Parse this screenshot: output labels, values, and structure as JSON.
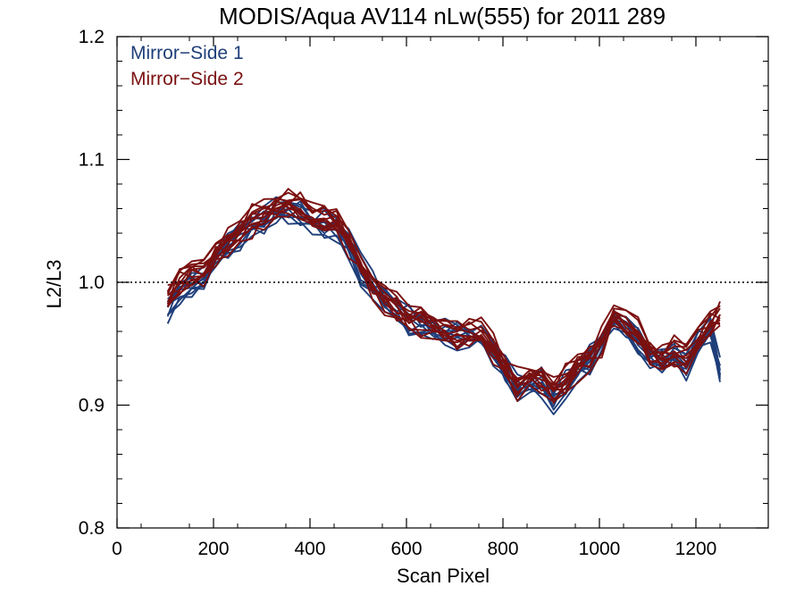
{
  "chart_data": {
    "type": "line",
    "title": "MODIS/Aqua AV114 nLw(555) for 2011 289",
    "xlabel": "Scan Pixel",
    "ylabel": "L2/L3",
    "xlim": [
      0,
      1350
    ],
    "ylim": [
      0.8,
      1.2
    ],
    "x_ticks": [
      0,
      200,
      400,
      600,
      800,
      1000,
      1200
    ],
    "y_ticks": [
      0.8,
      0.9,
      1.0,
      1.1,
      1.2
    ],
    "x_tick_labels": [
      "0",
      "200",
      "400",
      "600",
      "800",
      "1000",
      "1200"
    ],
    "y_tick_labels": [
      "0.8",
      "0.9",
      "1.0",
      "1.1",
      "1.2"
    ],
    "reference_line": 1.0,
    "legend": [
      "Mirror−Side 1",
      "Mirror−Side 2"
    ],
    "legend_placement": "top-left",
    "colors": {
      "Mirror-Side 1": "#1f3f7a",
      "Mirror-Side 2": "#7a1010"
    },
    "x": [
      105,
      130,
      155,
      180,
      205,
      230,
      255,
      280,
      305,
      330,
      355,
      380,
      405,
      430,
      455,
      480,
      505,
      530,
      555,
      580,
      605,
      630,
      655,
      680,
      705,
      730,
      755,
      780,
      805,
      830,
      855,
      880,
      905,
      930,
      955,
      980,
      1005,
      1030,
      1055,
      1080,
      1105,
      1130,
      1155,
      1180,
      1205,
      1230,
      1250
    ],
    "series": [
      {
        "name": "Mirror-Side 1 (typical)",
        "values": [
          0.978,
          0.992,
          1.0,
          1.003,
          1.02,
          1.028,
          1.038,
          1.045,
          1.05,
          1.055,
          1.058,
          1.056,
          1.052,
          1.048,
          1.044,
          1.03,
          1.01,
          0.995,
          0.985,
          0.978,
          0.97,
          0.966,
          0.962,
          0.958,
          0.955,
          0.956,
          0.955,
          0.945,
          0.928,
          0.915,
          0.918,
          0.918,
          0.905,
          0.915,
          0.928,
          0.935,
          0.95,
          0.97,
          0.962,
          0.955,
          0.938,
          0.935,
          0.94,
          0.93,
          0.95,
          0.96,
          0.925
        ]
      },
      {
        "name": "Mirror-Side 2 (typical)",
        "values": [
          0.985,
          1.0,
          1.006,
          1.01,
          1.024,
          1.032,
          1.041,
          1.05,
          1.056,
          1.062,
          1.062,
          1.06,
          1.056,
          1.053,
          1.048,
          1.034,
          1.013,
          0.998,
          0.988,
          0.98,
          0.972,
          0.968,
          0.963,
          0.96,
          0.957,
          0.958,
          0.96,
          0.948,
          0.93,
          0.918,
          0.922,
          0.924,
          0.912,
          0.92,
          0.932,
          0.94,
          0.952,
          0.972,
          0.965,
          0.958,
          0.942,
          0.94,
          0.945,
          0.936,
          0.955,
          0.966,
          0.975
        ]
      }
    ],
    "grid": false
  }
}
